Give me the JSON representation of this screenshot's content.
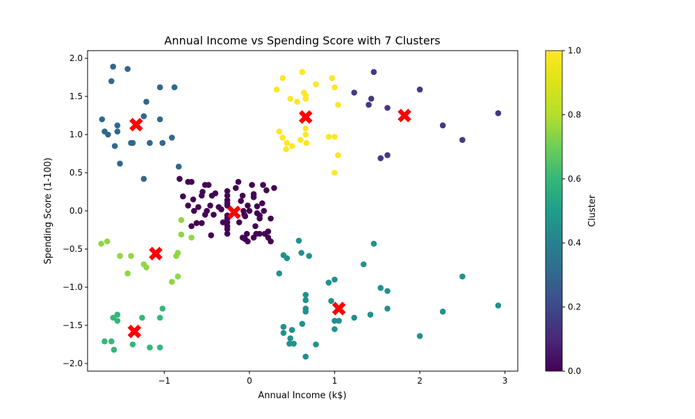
{
  "chart_data": {
    "type": "scatter",
    "title": "Annual Income vs Spending Score with 7 Clusters",
    "xlabel": "Annual Income (k$)",
    "ylabel": "Spending Score (1-100)",
    "xlim": [
      -1.9,
      3.15
    ],
    "ylim": [
      -2.1,
      2.1
    ],
    "xticks": [
      -1,
      0,
      1,
      2,
      3
    ],
    "xtick_labels": [
      "−1",
      "0",
      "1",
      "2",
      "3"
    ],
    "yticks": [
      -2.0,
      -1.5,
      -1.0,
      -0.5,
      0.0,
      0.5,
      1.0,
      1.5,
      2.0
    ],
    "ytick_labels": [
      "−2.0",
      "−1.5",
      "−1.0",
      "−0.5",
      "0.0",
      "0.5",
      "1.0",
      "1.5",
      "2.0"
    ],
    "grid": false,
    "colormap": "viridis",
    "colorbar": {
      "label": "Cluster",
      "range": [
        0,
        1
      ],
      "ticks": [
        0,
        0.2,
        0.4,
        0.6,
        0.8,
        1.0
      ],
      "tick_labels": [
        "0.0",
        "0.2",
        "0.4",
        "0.6",
        "0.8",
        "1.0"
      ]
    },
    "centroid_color": "#ff0000",
    "centroid_marker": "X",
    "clusters": [
      {
        "id": 0,
        "color_value": 0.0,
        "color": "#440154",
        "centroid": [
          -0.18,
          -0.02
        ],
        "points": [
          [
            -0.82,
            0.42
          ],
          [
            -0.78,
            0.19
          ],
          [
            -0.72,
            0.38
          ],
          [
            -0.68,
            0.38
          ],
          [
            -0.72,
            0.07
          ],
          [
            -0.66,
            0.15
          ],
          [
            -0.65,
            0.0
          ],
          [
            -0.68,
            -0.2
          ],
          [
            -0.62,
            -0.16
          ],
          [
            -0.56,
            -0.16
          ],
          [
            -0.6,
            0.05
          ],
          [
            -0.56,
            0.2
          ],
          [
            -0.55,
            0.25
          ],
          [
            -0.52,
            0.34
          ],
          [
            -0.48,
            0.34
          ],
          [
            -0.5,
            0.0
          ],
          [
            -0.46,
            0.07
          ],
          [
            -0.52,
            -0.05
          ],
          [
            -0.45,
            -0.32
          ],
          [
            -0.44,
            0.2
          ],
          [
            -0.4,
            0.23
          ],
          [
            -0.42,
            -0.05
          ],
          [
            -0.36,
            0.05
          ],
          [
            -0.33,
            0.02
          ],
          [
            -0.31,
            -0.15
          ],
          [
            -0.26,
            0.26
          ],
          [
            -0.26,
            0.2
          ],
          [
            -0.26,
            0.14
          ],
          [
            -0.26,
            0.1
          ],
          [
            -0.26,
            0.07
          ],
          [
            -0.26,
            -0.06
          ],
          [
            -0.26,
            -0.1
          ],
          [
            -0.26,
            -0.15
          ],
          [
            -0.26,
            -0.2
          ],
          [
            -0.26,
            -0.24
          ],
          [
            -0.26,
            -0.3
          ],
          [
            -0.16,
            0.3
          ],
          [
            -0.13,
            0.38
          ],
          [
            -0.12,
            -0.15
          ],
          [
            -0.1,
            0.13
          ],
          [
            -0.08,
            0.2
          ],
          [
            -0.07,
            -0.0
          ],
          [
            -0.06,
            -0.05
          ],
          [
            -0.05,
            -0.07
          ],
          [
            -0.08,
            -0.35
          ],
          [
            -0.05,
            -0.37
          ],
          [
            -0.03,
            -0.3
          ],
          [
            -0.02,
            0.07
          ],
          [
            -0.02,
            -0.4
          ],
          [
            0.0,
            0.0
          ],
          [
            0.03,
            0.34
          ],
          [
            0.05,
            0.22
          ],
          [
            0.05,
            0.18
          ],
          [
            0.07,
            -0.2
          ],
          [
            0.08,
            -0.3
          ],
          [
            0.05,
            -0.35
          ],
          [
            0.09,
            0.06
          ],
          [
            0.09,
            -0.03
          ],
          [
            0.12,
            -0.06
          ],
          [
            0.12,
            -0.1
          ],
          [
            0.12,
            -0.3
          ],
          [
            0.15,
            0.1
          ],
          [
            0.16,
            0.34
          ],
          [
            0.17,
            0.0
          ],
          [
            0.18,
            -0.3
          ],
          [
            0.2,
            0.27
          ],
          [
            0.22,
            -0.35
          ],
          [
            0.22,
            -0.27
          ],
          [
            0.25,
            -0.4
          ],
          [
            0.25,
            -0.1
          ],
          [
            0.29,
            0.3
          ]
        ]
      },
      {
        "id": 1,
        "color_value": 0.167,
        "color": "#443983",
        "centroid": [
          1.82,
          1.25
        ],
        "points": [
          [
            1.23,
            1.55
          ],
          [
            1.4,
            1.39
          ],
          [
            1.46,
            1.82
          ],
          [
            1.43,
            1.47
          ],
          [
            1.62,
            1.35
          ],
          [
            1.54,
            0.69
          ],
          [
            1.62,
            0.73
          ],
          [
            2.0,
            1.59
          ],
          [
            2.27,
            1.12
          ],
          [
            2.5,
            0.93
          ],
          [
            2.92,
            1.28
          ]
        ]
      },
      {
        "id": 2,
        "color_value": 0.333,
        "color": "#31688e",
        "centroid": [
          -1.33,
          1.13
        ],
        "points": [
          [
            -1.73,
            1.2
          ],
          [
            -1.7,
            1.04
          ],
          [
            -1.66,
            1.0
          ],
          [
            -1.6,
            1.89
          ],
          [
            -1.62,
            1.7
          ],
          [
            -1.58,
            0.85
          ],
          [
            -1.55,
            1.04
          ],
          [
            -1.55,
            1.12
          ],
          [
            -1.52,
            0.62
          ],
          [
            -1.43,
            1.86
          ],
          [
            -1.39,
            0.89
          ],
          [
            -1.37,
            0.89
          ],
          [
            -1.24,
            1.24
          ],
          [
            -1.21,
            1.43
          ],
          [
            -1.17,
            0.89
          ],
          [
            -1.24,
            0.42
          ],
          [
            -1.05,
            1.62
          ],
          [
            -1.05,
            1.2
          ],
          [
            -1.02,
            0.89
          ],
          [
            -0.91,
            0.96
          ],
          [
            -0.88,
            1.62
          ],
          [
            -0.83,
            0.58
          ]
        ]
      },
      {
        "id": 3,
        "color_value": 0.5,
        "color": "#21918c",
        "centroid": [
          1.05,
          -1.28
        ],
        "points": [
          [
            0.35,
            -0.82
          ],
          [
            0.4,
            -0.58
          ],
          [
            0.44,
            -0.62
          ],
          [
            0.58,
            -0.39
          ],
          [
            0.61,
            -0.55
          ],
          [
            0.7,
            -0.59
          ],
          [
            0.93,
            -0.94
          ],
          [
            1.0,
            -0.9
          ],
          [
            1.34,
            -0.7
          ],
          [
            1.46,
            -0.43
          ],
          [
            1.54,
            -1.01
          ],
          [
            1.62,
            -1.05
          ],
          [
            2.5,
            -0.86
          ],
          [
            2.92,
            -1.24
          ],
          [
            0.96,
            -1.18
          ],
          [
            0.66,
            -1.1
          ],
          [
            0.66,
            -1.17
          ],
          [
            0.66,
            -1.28
          ],
          [
            0.66,
            -1.32
          ],
          [
            1.23,
            -1.4
          ],
          [
            1.42,
            -1.36
          ],
          [
            1.62,
            -1.28
          ],
          [
            2.27,
            -1.32
          ],
          [
            1.0,
            -1.44
          ],
          [
            1.05,
            -1.44
          ],
          [
            1.0,
            -1.55
          ],
          [
            0.4,
            -1.52
          ],
          [
            0.4,
            -1.6
          ],
          [
            0.5,
            -1.56
          ],
          [
            0.62,
            -1.48
          ],
          [
            0.48,
            -1.67
          ],
          [
            0.47,
            -1.74
          ],
          [
            0.52,
            -1.74
          ],
          [
            0.78,
            -1.75
          ],
          [
            0.66,
            -1.91
          ],
          [
            2.0,
            -1.64
          ]
        ]
      },
      {
        "id": 4,
        "color_value": 0.667,
        "color": "#35b779",
        "centroid": [
          -1.35,
          -1.58
        ],
        "points": [
          [
            -1.7,
            -1.71
          ],
          [
            -1.62,
            -1.71
          ],
          [
            -1.59,
            -1.82
          ],
          [
            -1.6,
            -1.4
          ],
          [
            -1.55,
            -1.36
          ],
          [
            -1.55,
            -1.44
          ],
          [
            -1.37,
            -1.75
          ],
          [
            -1.26,
            -1.4
          ],
          [
            -1.17,
            -1.79
          ],
          [
            -1.05,
            -1.4
          ],
          [
            -1.05,
            -1.79
          ],
          [
            -1.02,
            -1.28
          ]
        ]
      },
      {
        "id": 5,
        "color_value": 0.833,
        "color": "#90d743",
        "centroid": [
          -1.1,
          -0.56
        ],
        "points": [
          [
            -1.74,
            -0.43
          ],
          [
            -1.67,
            -0.4
          ],
          [
            -1.52,
            -0.59
          ],
          [
            -1.43,
            -0.82
          ],
          [
            -1.39,
            -0.59
          ],
          [
            -1.24,
            -0.7
          ],
          [
            -1.21,
            -0.74
          ],
          [
            -0.91,
            -0.93
          ],
          [
            -0.86,
            -0.59
          ],
          [
            -0.84,
            -0.55
          ],
          [
            -0.84,
            -0.86
          ],
          [
            -0.8,
            -0.31
          ],
          [
            -0.8,
            -0.12
          ],
          [
            -0.68,
            -0.35
          ]
        ]
      },
      {
        "id": 6,
        "color_value": 1.0,
        "color": "#fde725",
        "centroid": [
          0.66,
          1.23
        ],
        "points": [
          [
            0.32,
            1.59
          ],
          [
            0.35,
            1.04
          ],
          [
            0.39,
            1.74
          ],
          [
            0.39,
            0.96
          ],
          [
            0.43,
            0.81
          ],
          [
            0.44,
            0.89
          ],
          [
            0.48,
            1.47
          ],
          [
            0.5,
            0.85
          ],
          [
            0.56,
            1.43
          ],
          [
            0.6,
            0.93
          ],
          [
            0.62,
            1.82
          ],
          [
            0.64,
            1.55
          ],
          [
            0.66,
            1.51
          ],
          [
            0.66,
            1.47
          ],
          [
            0.66,
            1.08
          ],
          [
            0.66,
            1.0
          ],
          [
            0.67,
            0.89
          ],
          [
            0.78,
            1.66
          ],
          [
            0.93,
            0.97
          ],
          [
            0.97,
            1.74
          ],
          [
            1.0,
            0.97
          ],
          [
            1.0,
            1.62
          ],
          [
            1.0,
            0.5
          ],
          [
            1.04,
            1.39
          ],
          [
            1.04,
            0.73
          ]
        ]
      }
    ]
  }
}
